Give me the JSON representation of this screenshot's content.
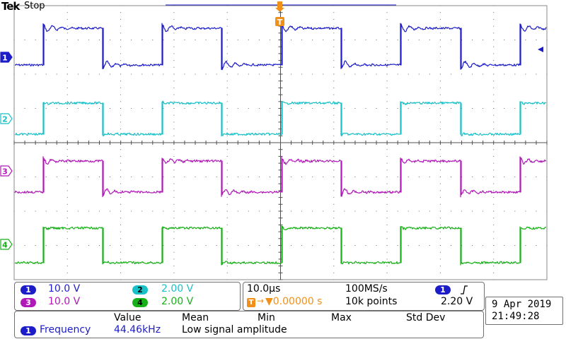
{
  "header": {
    "brand": "Tek",
    "acq_state": "Stop"
  },
  "trigger_marker": {
    "label": "T"
  },
  "channels": [
    {
      "id": "1",
      "color": "#1c1cc8",
      "scale": "10.0 V"
    },
    {
      "id": "2",
      "color": "#18c0c8",
      "scale": "2.00 V"
    },
    {
      "id": "3",
      "color": "#b018b8",
      "scale": "10.0 V"
    },
    {
      "id": "4",
      "color": "#18b018",
      "scale": "2.00 V"
    }
  ],
  "timebase": {
    "scale": "10.0µs",
    "sample_rate": "100MS/s",
    "trigger_position": "▼0.00000 s",
    "record_length": "10k points",
    "trigger_source": "1",
    "trigger_slope_icon": "rising-edge-icon",
    "trigger_level": "2.20 V"
  },
  "datetime": {
    "date": "9 Apr  2019",
    "time": "21:49:28"
  },
  "measurements": {
    "headers": [
      "Value",
      "Mean",
      "Min",
      "Max",
      "Std Dev"
    ],
    "rows": [
      {
        "channel": "1",
        "name": "Frequency",
        "value": "44.46kHz",
        "status": "Low signal amplitude"
      }
    ]
  },
  "colors": {
    "trigger": "#f09018",
    "grid": "#6a6a6a"
  }
}
